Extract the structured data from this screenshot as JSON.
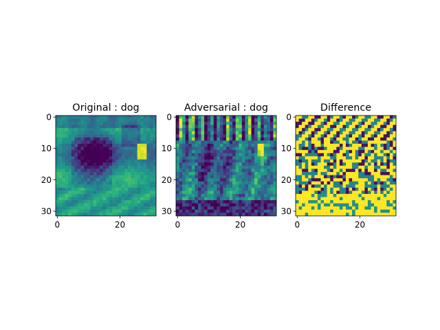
{
  "chart_data": [
    {
      "type": "heatmap",
      "title": "Original : dog",
      "colormap": "viridis",
      "grid": false,
      "image_size": [
        32,
        32
      ],
      "xlim": [
        -0.5,
        31.5
      ],
      "ylim": [
        31.5,
        -0.5
      ],
      "x_ticks": [
        0,
        20
      ],
      "y_ticks": [
        0,
        10,
        20,
        30
      ],
      "x_tick_labels": [
        "0",
        "20"
      ],
      "y_tick_labels": [
        "0",
        "10",
        "20",
        "30"
      ]
    },
    {
      "type": "heatmap",
      "title": "Adversarial : dog",
      "colormap": "viridis",
      "grid": false,
      "image_size": [
        32,
        32
      ],
      "xlim": [
        -0.5,
        31.5
      ],
      "ylim": [
        31.5,
        -0.5
      ],
      "x_ticks": [
        0,
        20
      ],
      "y_ticks": [
        0,
        10,
        20,
        30
      ],
      "x_tick_labels": [
        "0",
        "20"
      ],
      "y_tick_labels": [
        "0",
        "10",
        "20",
        "30"
      ]
    },
    {
      "type": "heatmap",
      "title": "Difference",
      "colormap": "viridis",
      "grid": false,
      "image_size": [
        32,
        32
      ],
      "xlim": [
        -0.5,
        31.5
      ],
      "ylim": [
        31.5,
        -0.5
      ],
      "x_ticks": [
        0,
        20
      ],
      "y_ticks": [
        0,
        10,
        20,
        30
      ],
      "x_tick_labels": [
        "0",
        "20"
      ],
      "y_tick_labels": [
        "0",
        "10",
        "20",
        "30"
      ]
    }
  ]
}
